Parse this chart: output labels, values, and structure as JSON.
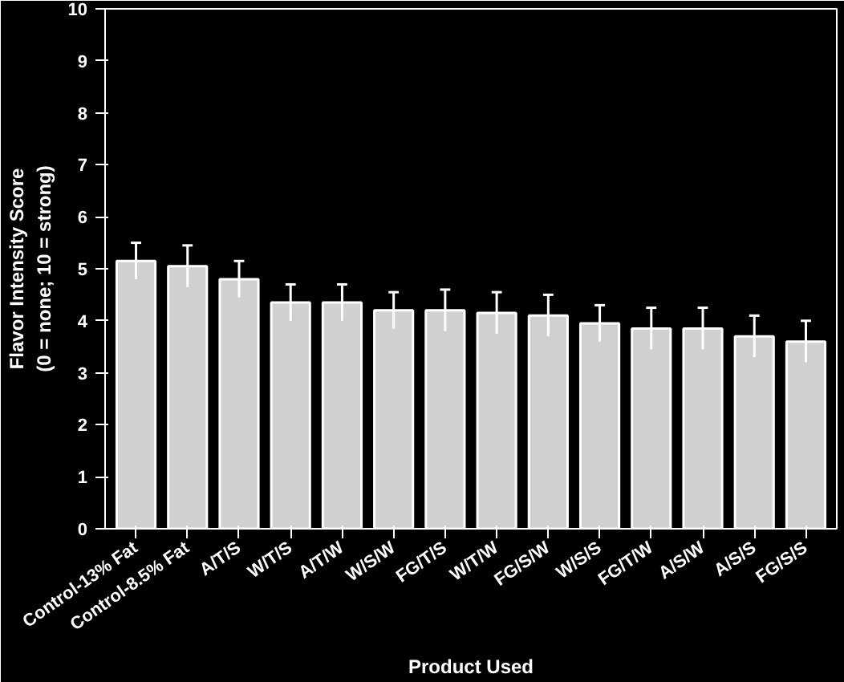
{
  "chart_data": {
    "type": "bar",
    "xlabel": "Product Used",
    "ylabel": "Flavor Intensity Score\n(0 = none; 10 = strong)",
    "categories": [
      "Control-13% Fat",
      "Control-8.5% Fat",
      "A/T/S",
      "W/T/S",
      "A/T/W",
      "W/S/W",
      "FG/T/S",
      "W/T/W",
      "FG/S/W",
      "W/S/S",
      "FG/T/W",
      "A/S/W",
      "A/S/S",
      "FG/S/S"
    ],
    "values": [
      5.15,
      5.05,
      4.8,
      4.35,
      4.35,
      4.2,
      4.2,
      4.15,
      4.1,
      3.95,
      3.85,
      3.85,
      3.7,
      3.6
    ],
    "errors": [
      0.35,
      0.4,
      0.35,
      0.35,
      0.35,
      0.35,
      0.4,
      0.4,
      0.4,
      0.35,
      0.4,
      0.4,
      0.4,
      0.4
    ],
    "color": "#d0d0d0",
    "ylim": [
      0,
      10
    ],
    "yticks": [
      0,
      1,
      2,
      3,
      4,
      5,
      6,
      7,
      8,
      9,
      10
    ],
    "grid": false
  }
}
